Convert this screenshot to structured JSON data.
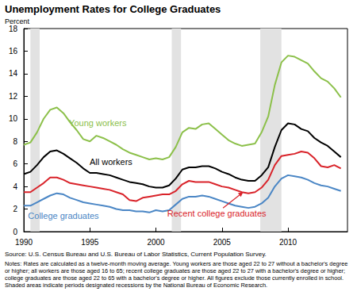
{
  "chart_data": {
    "type": "line",
    "title": "Unemployment Rates for College Graduates",
    "y_label": "Percent",
    "source": "Source: U.S. Census Bureau and U.S. Bureau of Labor Statistics, Current Population Survey.",
    "notes": "Notes: Rates are calculated as a twelve-month moving average. Young workers are those aged 22 to 27 without a bachelor's degree or higher; all workers are those aged 16 to 65; recent college graduates are those aged 22 to 27 with a bachelor's degree or higher; college graduates are those aged 22 to 65 with a bachelor's degree or higher. All figures exclude those currently enrolled in school. Shaded areas indicate periods designated recessions by the National Bureau of Economic Research.",
    "x": [
      1990,
      1990.5,
      1991,
      1991.5,
      1992,
      1992.5,
      1993,
      1993.5,
      1994,
      1994.5,
      1995,
      1995.5,
      1996,
      1996.5,
      1997,
      1997.5,
      1998,
      1998.5,
      1999,
      1999.5,
      2000,
      2000.5,
      2001,
      2001.5,
      2002,
      2002.5,
      2003,
      2003.5,
      2004,
      2004.5,
      2005,
      2005.5,
      2006,
      2006.5,
      2007,
      2007.5,
      2008,
      2008.5,
      2009,
      2009.5,
      2010,
      2010.5,
      2011,
      2011.5,
      2012,
      2012.5,
      2013,
      2013.5,
      2014
    ],
    "series": [
      {
        "name": "Young workers",
        "color": "#8cc04a",
        "values": [
          7.7,
          7.9,
          8.8,
          10.0,
          10.8,
          11.0,
          10.5,
          9.7,
          9.0,
          8.2,
          8.0,
          8.5,
          8.3,
          8.0,
          7.7,
          7.3,
          7.0,
          6.8,
          6.6,
          6.4,
          6.5,
          6.4,
          6.6,
          7.5,
          8.8,
          9.2,
          9.1,
          9.5,
          9.6,
          9.1,
          8.6,
          8.1,
          7.8,
          7.6,
          7.7,
          7.8,
          8.8,
          10.2,
          13.0,
          15.0,
          15.6,
          15.5,
          15.2,
          14.9,
          14.2,
          13.6,
          13.3,
          12.7,
          11.9
        ]
      },
      {
        "name": "All workers",
        "color": "#000000",
        "values": [
          5.1,
          5.3,
          5.9,
          6.6,
          7.1,
          7.2,
          6.9,
          6.5,
          6.1,
          5.6,
          5.2,
          5.2,
          5.1,
          5.0,
          4.8,
          4.6,
          4.4,
          4.3,
          4.2,
          4.0,
          3.9,
          3.9,
          4.1,
          4.7,
          5.5,
          5.7,
          5.7,
          5.8,
          5.8,
          5.6,
          5.3,
          5.1,
          4.8,
          4.6,
          4.5,
          4.5,
          5.0,
          5.7,
          7.5,
          9.0,
          9.6,
          9.5,
          9.1,
          8.9,
          8.3,
          7.9,
          7.6,
          7.1,
          6.6
        ]
      },
      {
        "name": "Recent college graduates",
        "color": "#d9232a",
        "values": [
          3.5,
          3.5,
          3.9,
          4.3,
          4.8,
          4.8,
          4.6,
          4.3,
          4.2,
          4.1,
          4.0,
          3.9,
          3.8,
          3.7,
          3.5,
          3.3,
          2.8,
          2.7,
          3.0,
          3.1,
          3.2,
          3.3,
          3.3,
          3.6,
          4.2,
          4.5,
          4.4,
          4.4,
          4.4,
          4.2,
          4.0,
          3.9,
          3.7,
          3.5,
          3.4,
          3.5,
          3.9,
          4.6,
          5.9,
          6.7,
          6.8,
          6.9,
          7.1,
          7.0,
          6.5,
          5.8,
          5.7,
          5.9,
          5.6
        ]
      },
      {
        "name": "College graduates",
        "color": "#4a86c5",
        "values": [
          2.3,
          2.3,
          2.6,
          2.9,
          3.2,
          3.4,
          3.3,
          3.0,
          2.8,
          2.6,
          2.5,
          2.4,
          2.3,
          2.2,
          2.0,
          1.9,
          1.9,
          1.8,
          1.8,
          1.7,
          1.9,
          1.8,
          1.9,
          2.4,
          2.9,
          3.1,
          3.1,
          3.2,
          3.1,
          2.9,
          2.7,
          2.5,
          2.3,
          2.2,
          2.1,
          2.2,
          2.5,
          3.0,
          4.0,
          4.7,
          5.0,
          4.9,
          4.8,
          4.6,
          4.3,
          4.1,
          4.0,
          3.8,
          3.6
        ]
      }
    ],
    "recessions": [
      [
        1990.5,
        1991.2
      ],
      [
        2001.2,
        2001.9
      ],
      [
        2007.9,
        2009.5
      ]
    ],
    "recession_color": "#e2e2e2",
    "annotations": [
      {
        "text": "Young workers",
        "x": 1995.6,
        "y": 9.6,
        "color": "#8cc04a"
      },
      {
        "text": "All workers",
        "x": 1996.6,
        "y": 6.2,
        "color": "#000000"
      },
      {
        "text": "College graduates",
        "x": 1993.0,
        "y": 1.4,
        "color": "#4a86c5"
      },
      {
        "text": "Recent college graduates",
        "x": 2004.6,
        "y": 1.6,
        "color": "#d9232a",
        "arrow_to": [
          2006.6,
          3.5
        ]
      }
    ],
    "xlim": [
      1990,
      2014.5
    ],
    "xticks": [
      1990,
      1995,
      2000,
      2005,
      2010
    ],
    "ylim": [
      0,
      18
    ],
    "yticks": [
      0,
      2,
      4,
      6,
      8,
      10,
      12,
      14,
      16,
      18
    ],
    "grid": false
  }
}
